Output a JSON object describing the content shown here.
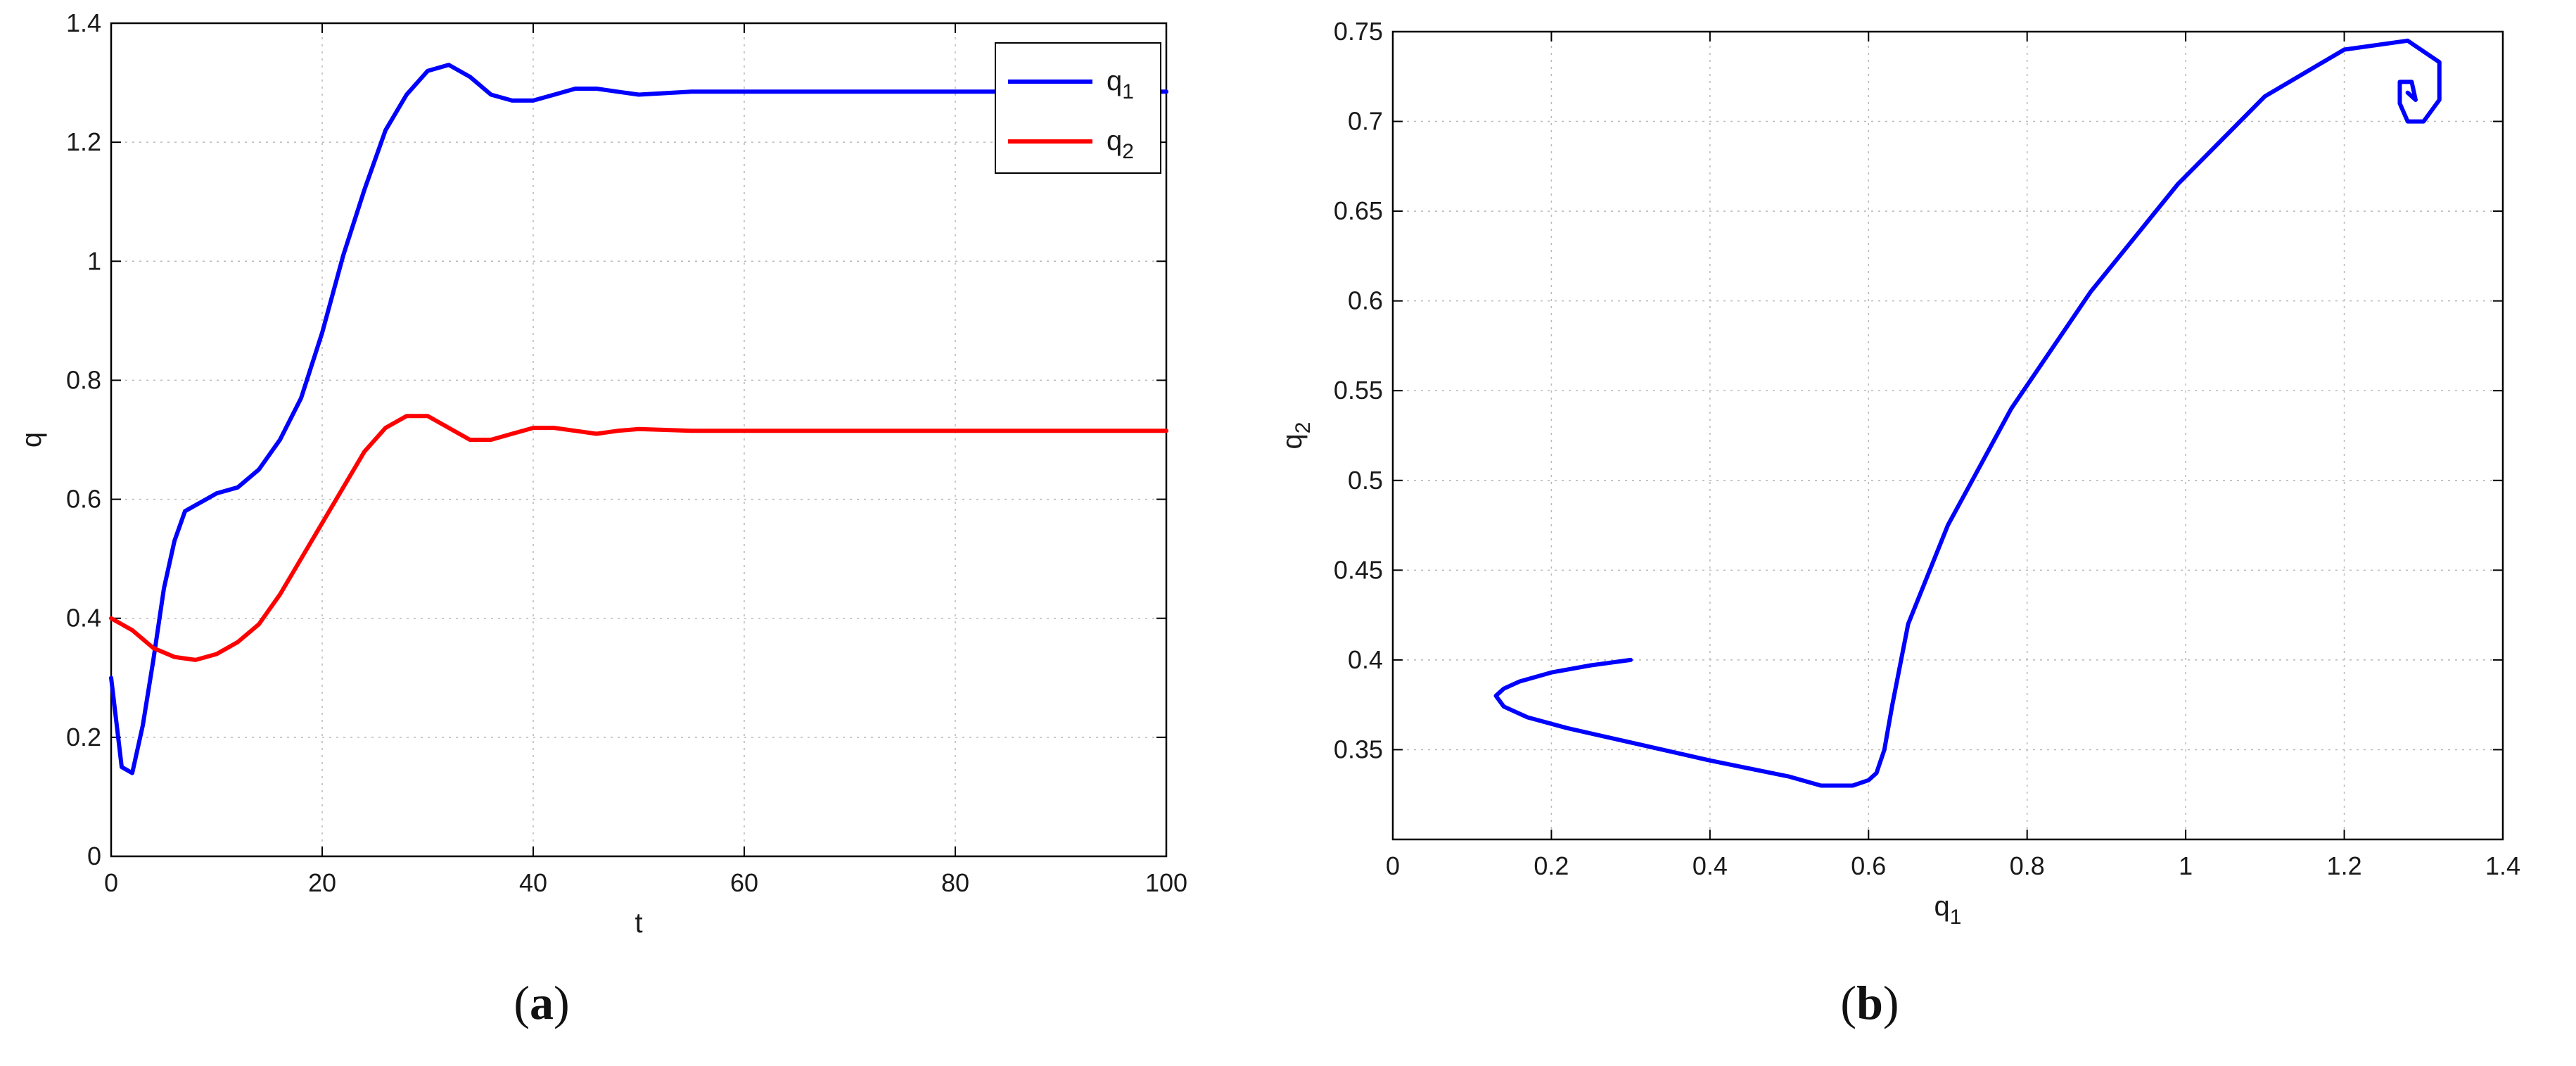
{
  "chart_data": [
    {
      "type": "line",
      "panel_label": "a",
      "xlabel": "t",
      "ylabel": "q",
      "xlim": [
        0,
        100
      ],
      "ylim": [
        0,
        1.4
      ],
      "xticks": [
        "0",
        "20",
        "40",
        "60",
        "80",
        "100"
      ],
      "yticks": [
        "0",
        "0.2",
        "0.4",
        "0.6",
        "0.8",
        "1",
        "1.2",
        "1.4"
      ],
      "grid": true,
      "legend_position": "top-right",
      "series": [
        {
          "name": "q",
          "name_subscript": "1",
          "color": "#0000ff",
          "x": [
            0,
            1,
            2,
            3,
            4,
            5,
            6,
            7,
            8,
            9,
            10,
            12,
            14,
            16,
            18,
            20,
            22,
            24,
            26,
            28,
            30,
            32,
            33,
            34,
            36,
            38,
            40,
            42,
            44,
            46,
            48,
            50,
            55,
            60,
            70,
            80,
            90,
            100
          ],
          "y": [
            0.3,
            0.15,
            0.14,
            0.22,
            0.33,
            0.45,
            0.53,
            0.58,
            0.59,
            0.6,
            0.61,
            0.62,
            0.65,
            0.7,
            0.77,
            0.88,
            1.01,
            1.12,
            1.22,
            1.28,
            1.32,
            1.33,
            1.32,
            1.31,
            1.28,
            1.27,
            1.27,
            1.28,
            1.29,
            1.29,
            1.285,
            1.28,
            1.285,
            1.285,
            1.285,
            1.285,
            1.285,
            1.285
          ]
        },
        {
          "name": "q",
          "name_subscript": "2",
          "color": "#ff0000",
          "x": [
            0,
            2,
            4,
            6,
            8,
            10,
            12,
            14,
            16,
            18,
            20,
            22,
            24,
            26,
            28,
            30,
            32,
            34,
            36,
            38,
            40,
            42,
            44,
            46,
            48,
            50,
            55,
            60,
            70,
            80,
            90,
            100
          ],
          "y": [
            0.4,
            0.38,
            0.35,
            0.335,
            0.33,
            0.34,
            0.36,
            0.39,
            0.44,
            0.5,
            0.56,
            0.62,
            0.68,
            0.72,
            0.74,
            0.74,
            0.72,
            0.7,
            0.7,
            0.71,
            0.72,
            0.72,
            0.715,
            0.71,
            0.715,
            0.718,
            0.715,
            0.715,
            0.715,
            0.715,
            0.715,
            0.715
          ]
        }
      ]
    },
    {
      "type": "line",
      "panel_label": "b",
      "xlabel": "q",
      "xlabel_subscript": "1",
      "ylabel": "q",
      "ylabel_subscript": "2",
      "xlim": [
        0,
        1.4
      ],
      "ylim": [
        0.3,
        0.75
      ],
      "xticks": [
        "0",
        "0.2",
        "0.4",
        "0.6",
        "0.8",
        "1",
        "1.2",
        "1.4"
      ],
      "yticks": [
        "0.35",
        "0.4",
        "0.45",
        "0.5",
        "0.55",
        "0.6",
        "0.65",
        "0.7",
        "0.75"
      ],
      "grid": true,
      "series": [
        {
          "color": "#0000ff",
          "x": [
            0.3,
            0.25,
            0.2,
            0.16,
            0.14,
            0.13,
            0.14,
            0.17,
            0.22,
            0.3,
            0.4,
            0.5,
            0.54,
            0.58,
            0.6,
            0.61,
            0.62,
            0.63,
            0.65,
            0.7,
            0.78,
            0.88,
            0.99,
            1.1,
            1.2,
            1.28,
            1.32,
            1.32,
            1.3,
            1.28,
            1.27,
            1.27,
            1.285,
            1.29,
            1.28
          ],
          "y": [
            0.4,
            0.397,
            0.393,
            0.388,
            0.384,
            0.38,
            0.374,
            0.368,
            0.362,
            0.354,
            0.344,
            0.335,
            0.33,
            0.33,
            0.333,
            0.337,
            0.35,
            0.375,
            0.42,
            0.475,
            0.54,
            0.605,
            0.665,
            0.714,
            0.74,
            0.745,
            0.733,
            0.712,
            0.7,
            0.7,
            0.71,
            0.722,
            0.722,
            0.712,
            0.716
          ]
        }
      ]
    }
  ]
}
